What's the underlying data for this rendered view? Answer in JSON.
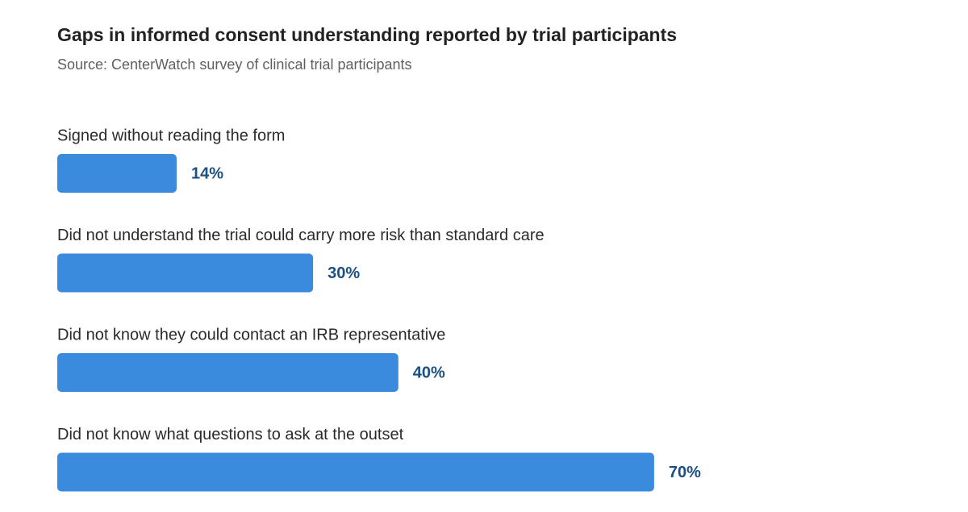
{
  "chart_data": {
    "type": "bar",
    "orientation": "horizontal",
    "title": "Gaps in informed consent understanding reported by trial participants",
    "subtitle": "Source: CenterWatch survey of clinical trial participants",
    "categories": [
      "Signed without reading the form",
      "Did not understand the trial could carry more risk than standard care",
      "Did not know they could contact an IRB representative",
      "Did not know what questions to ask at the outset"
    ],
    "values": [
      14,
      30,
      40,
      70
    ],
    "value_labels": [
      "14%",
      "30%",
      "40%",
      "70%"
    ],
    "color": "#3a8ade",
    "xlim": [
      0,
      100
    ]
  }
}
